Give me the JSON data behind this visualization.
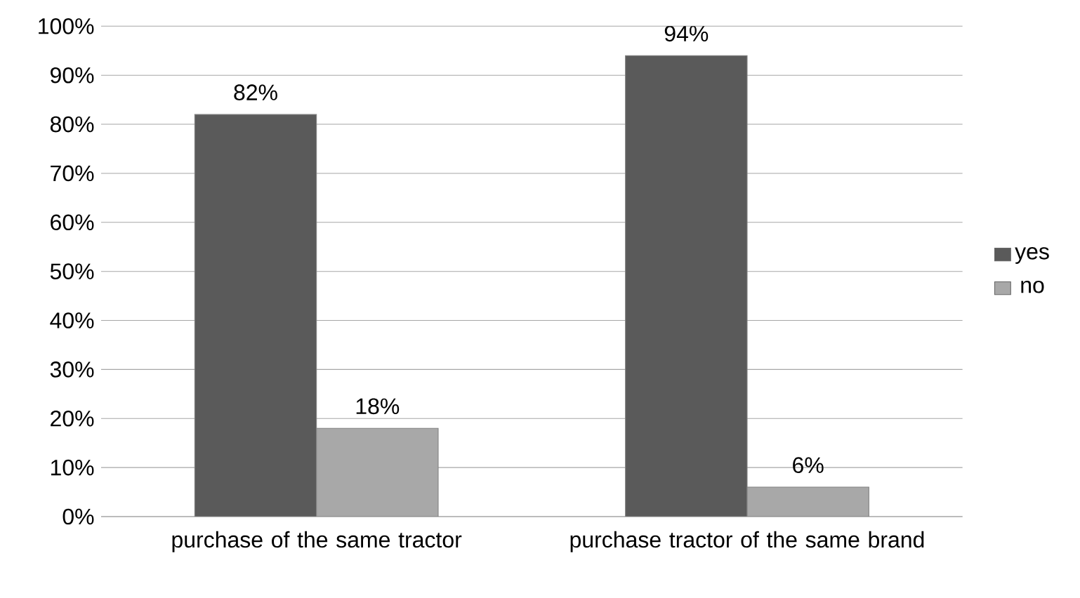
{
  "chart_data": {
    "type": "bar",
    "categories": [
      "purchase of the same tractor",
      "purchase tractor of the same brand"
    ],
    "series": [
      {
        "name": "yes",
        "color": "#5a5a5a",
        "values": [
          82,
          94
        ],
        "value_labels": [
          "82%",
          "94%"
        ]
      },
      {
        "name": "no",
        "color": "#a8a8a8",
        "values": [
          18,
          6
        ],
        "value_labels": [
          "18%",
          "6%"
        ]
      }
    ],
    "ylim": [
      0,
      100
    ],
    "yticks": [
      {
        "value": 0,
        "label": "0%"
      },
      {
        "value": 10,
        "label": "10%"
      },
      {
        "value": 20,
        "label": "20%"
      },
      {
        "value": 30,
        "label": "30%"
      },
      {
        "value": 40,
        "label": "40%"
      },
      {
        "value": 50,
        "label": "50%"
      },
      {
        "value": 60,
        "label": "60%"
      },
      {
        "value": 70,
        "label": "70%"
      },
      {
        "value": 80,
        "label": "80%"
      },
      {
        "value": 90,
        "label": "90%"
      },
      {
        "value": 100,
        "label": "100%"
      }
    ],
    "grid": "y",
    "legend": "right"
  }
}
